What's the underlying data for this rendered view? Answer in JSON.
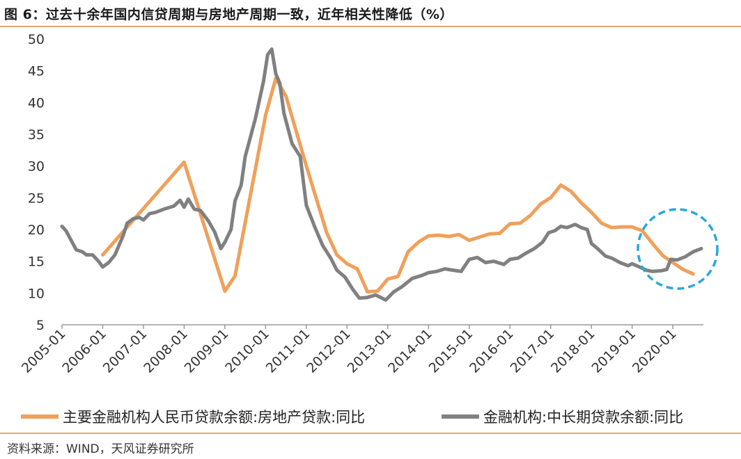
{
  "header": {
    "title": "图 6：过去十余年国内信贷周期与房地产周期一致，近年相关性降低（%）"
  },
  "footer": {
    "source": "资料来源：WIND，天风证券研究所"
  },
  "chart_data": {
    "type": "line",
    "title": "图 6：过去十余年国内信贷周期与房地产周期一致，近年相关性降低（%）",
    "xlabel": "",
    "ylabel": "",
    "ylim": [
      5,
      50
    ],
    "yticks": [
      5,
      10,
      15,
      20,
      25,
      30,
      35,
      40,
      45,
      50
    ],
    "xlim": [
      2005.0,
      2020.75
    ],
    "xticks": [
      "2005-01",
      "2006-01",
      "2007-01",
      "2008-01",
      "2009-01",
      "2010-01",
      "2011-01",
      "2012-01",
      "2013-01",
      "2014-01",
      "2015-01",
      "2016-01",
      "2017-01",
      "2018-01",
      "2019-01",
      "2020-01"
    ],
    "legend_position": "bottom",
    "annotation": "dashed circle highlighting 2019-2020 divergence",
    "colors": {
      "series1": "#f0a05a",
      "series2": "#808080",
      "circle": "#2aa7dc",
      "axis": "#999999"
    },
    "series": [
      {
        "name": "主要金融机构人民币贷款余额:房地产贷款:同比",
        "points": [
          [
            2006.0,
            16.0
          ],
          [
            2008.0,
            30.6
          ],
          [
            2009.0,
            10.3
          ],
          [
            2009.25,
            12.7
          ],
          [
            2010.0,
            38.0
          ],
          [
            2010.25,
            43.8
          ],
          [
            2010.5,
            41.0
          ],
          [
            2011.0,
            30.0
          ],
          [
            2011.5,
            19.5
          ],
          [
            2011.75,
            16.0
          ],
          [
            2012.0,
            14.6
          ],
          [
            2012.25,
            13.8
          ],
          [
            2012.5,
            10.2
          ],
          [
            2012.75,
            10.3
          ],
          [
            2013.0,
            12.2
          ],
          [
            2013.25,
            12.6
          ],
          [
            2013.5,
            16.5
          ],
          [
            2013.75,
            18.0
          ],
          [
            2014.0,
            19.0
          ],
          [
            2014.25,
            19.1
          ],
          [
            2014.5,
            18.9
          ],
          [
            2014.75,
            19.2
          ],
          [
            2015.0,
            18.3
          ],
          [
            2015.25,
            18.8
          ],
          [
            2015.5,
            19.3
          ],
          [
            2015.75,
            19.4
          ],
          [
            2016.0,
            20.9
          ],
          [
            2016.25,
            21.0
          ],
          [
            2016.5,
            22.2
          ],
          [
            2016.75,
            24.0
          ],
          [
            2017.0,
            25.0
          ],
          [
            2017.25,
            27.0
          ],
          [
            2017.5,
            26.0
          ],
          [
            2017.75,
            24.2
          ],
          [
            2018.0,
            22.7
          ],
          [
            2018.25,
            21.0
          ],
          [
            2018.5,
            20.3
          ],
          [
            2018.75,
            20.4
          ],
          [
            2019.0,
            20.4
          ],
          [
            2019.25,
            19.8
          ],
          [
            2019.5,
            17.8
          ],
          [
            2019.75,
            15.9
          ],
          [
            2020.0,
            14.8
          ],
          [
            2020.25,
            13.7
          ],
          [
            2020.5,
            13.0
          ]
        ]
      },
      {
        "name": "金融机构:中长期贷款余额:同比",
        "points": [
          [
            2005.0,
            20.5
          ],
          [
            2005.1,
            19.8
          ],
          [
            2005.35,
            16.8
          ],
          [
            2005.5,
            16.5
          ],
          [
            2005.6,
            16.0
          ],
          [
            2005.75,
            16.0
          ],
          [
            2005.9,
            15.0
          ],
          [
            2006.0,
            14.1
          ],
          [
            2006.15,
            14.8
          ],
          [
            2006.3,
            16.0
          ],
          [
            2006.5,
            19.0
          ],
          [
            2006.6,
            21.0
          ],
          [
            2006.75,
            21.7
          ],
          [
            2006.9,
            21.9
          ],
          [
            2007.0,
            21.5
          ],
          [
            2007.15,
            22.5
          ],
          [
            2007.3,
            22.7
          ],
          [
            2007.5,
            23.2
          ],
          [
            2007.75,
            23.7
          ],
          [
            2007.9,
            24.6
          ],
          [
            2008.0,
            23.5
          ],
          [
            2008.1,
            24.8
          ],
          [
            2008.25,
            23.2
          ],
          [
            2008.4,
            23.0
          ],
          [
            2008.6,
            21.3
          ],
          [
            2008.75,
            19.6
          ],
          [
            2008.9,
            17.0
          ],
          [
            2009.0,
            18.0
          ],
          [
            2009.15,
            20.0
          ],
          [
            2009.25,
            24.5
          ],
          [
            2009.4,
            27.0
          ],
          [
            2009.5,
            31.5
          ],
          [
            2009.75,
            37.5
          ],
          [
            2009.95,
            43.4
          ],
          [
            2010.05,
            47.5
          ],
          [
            2010.15,
            48.4
          ],
          [
            2010.25,
            44.5
          ],
          [
            2010.35,
            43.0
          ],
          [
            2010.45,
            38.3
          ],
          [
            2010.65,
            33.5
          ],
          [
            2010.85,
            31.5
          ],
          [
            2011.0,
            23.8
          ],
          [
            2011.2,
            20.5
          ],
          [
            2011.4,
            17.5
          ],
          [
            2011.6,
            15.5
          ],
          [
            2011.75,
            13.6
          ],
          [
            2011.95,
            12.5
          ],
          [
            2012.15,
            10.5
          ],
          [
            2012.3,
            9.2
          ],
          [
            2012.5,
            9.3
          ],
          [
            2012.7,
            9.7
          ],
          [
            2012.95,
            8.9
          ],
          [
            2013.15,
            10.2
          ],
          [
            2013.35,
            11.0
          ],
          [
            2013.6,
            12.3
          ],
          [
            2013.85,
            12.8
          ],
          [
            2014.0,
            13.2
          ],
          [
            2014.2,
            13.4
          ],
          [
            2014.4,
            13.8
          ],
          [
            2014.6,
            13.6
          ],
          [
            2014.8,
            13.4
          ],
          [
            2015.0,
            15.3
          ],
          [
            2015.2,
            15.6
          ],
          [
            2015.4,
            14.8
          ],
          [
            2015.6,
            15.0
          ],
          [
            2015.85,
            14.5
          ],
          [
            2016.0,
            15.3
          ],
          [
            2016.2,
            15.5
          ],
          [
            2016.4,
            16.3
          ],
          [
            2016.6,
            17.0
          ],
          [
            2016.8,
            18.0
          ],
          [
            2016.95,
            19.5
          ],
          [
            2017.1,
            19.8
          ],
          [
            2017.25,
            20.5
          ],
          [
            2017.4,
            20.3
          ],
          [
            2017.6,
            20.8
          ],
          [
            2017.75,
            20.3
          ],
          [
            2017.9,
            20.0
          ],
          [
            2018.0,
            17.8
          ],
          [
            2018.15,
            17.0
          ],
          [
            2018.35,
            15.8
          ],
          [
            2018.5,
            15.5
          ],
          [
            2018.7,
            14.8
          ],
          [
            2018.9,
            14.3
          ],
          [
            2019.0,
            14.6
          ],
          [
            2019.15,
            14.2
          ],
          [
            2019.35,
            13.6
          ],
          [
            2019.5,
            13.4
          ],
          [
            2019.7,
            13.5
          ],
          [
            2019.85,
            13.7
          ],
          [
            2019.95,
            15.3
          ],
          [
            2020.1,
            15.2
          ],
          [
            2020.3,
            15.7
          ],
          [
            2020.5,
            16.5
          ],
          [
            2020.7,
            17.0
          ]
        ]
      }
    ]
  }
}
